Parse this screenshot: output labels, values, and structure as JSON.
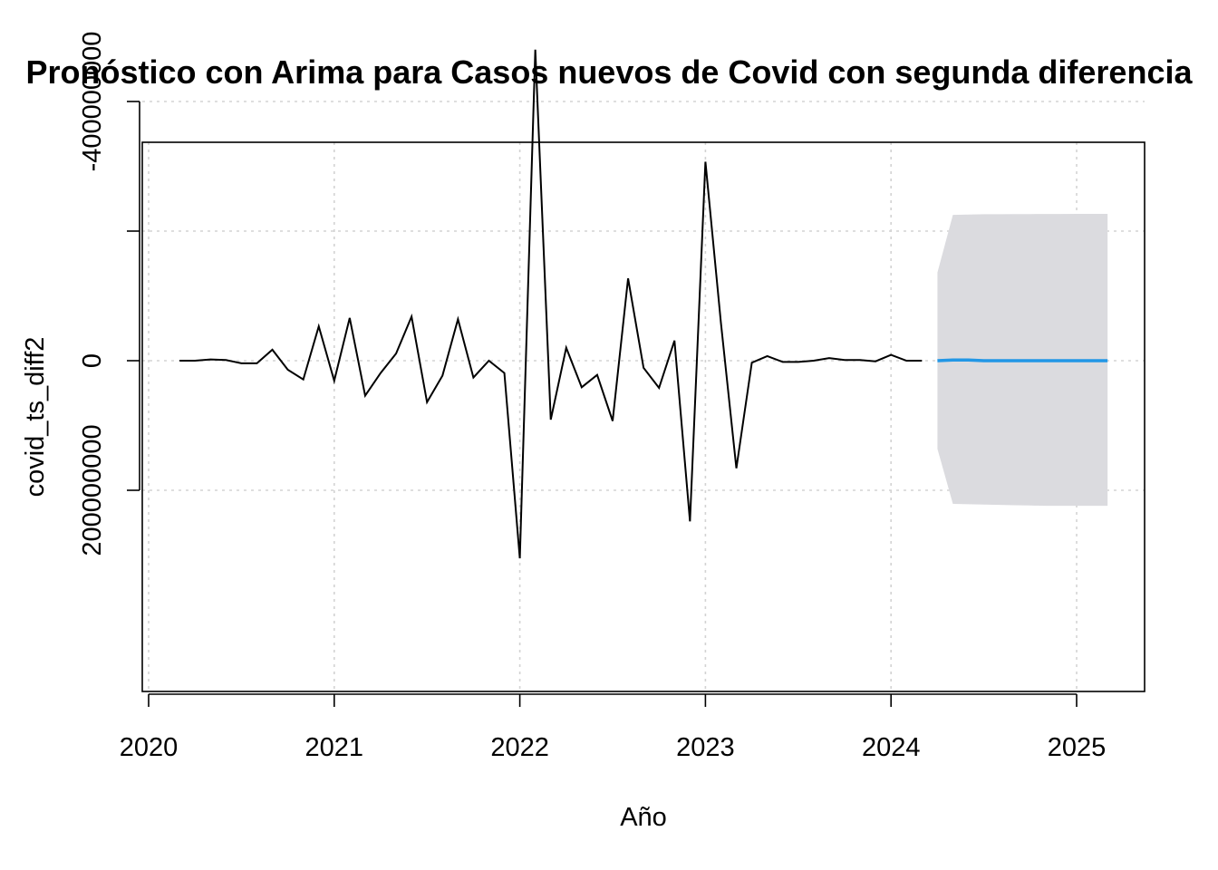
{
  "chart_data": {
    "type": "line",
    "title": "Pronóstico con Arima para Casos nuevos de Covid con segunda diferencia",
    "xlabel": "Año",
    "ylabel": "covid_ts_diff2",
    "xlim": [
      2020.0,
      2025.4
    ],
    "ylim": [
      -510000000,
      340000000
    ],
    "x_ticks": [
      2020,
      2021,
      2022,
      2023,
      2024,
      2025
    ],
    "x_tick_labels": [
      "2020",
      "2021",
      "2022",
      "2023",
      "2024",
      "2025"
    ],
    "y_ticks": [
      -400000000,
      -200000000,
      0,
      200000000
    ],
    "y_tick_labels": [
      "-400000000",
      "",
      "0",
      "200000000"
    ],
    "grid": true,
    "colors": {
      "observed": "#000000",
      "forecast": "#2297e6",
      "interval": "#dbdbdf",
      "grid": "#d3d3d3"
    },
    "series": [
      {
        "role": "observed",
        "x": [
          2020.1667,
          2020.25,
          2020.3333,
          2020.4167,
          2020.5,
          2020.5833,
          2020.6667,
          2020.75,
          2020.8333,
          2020.9167,
          2021.0,
          2021.0833,
          2021.1667,
          2021.25,
          2021.3333,
          2021.4167,
          2021.5,
          2021.5833,
          2021.6667,
          2021.75,
          2021.8333,
          2021.9167,
          2022.0,
          2022.0833,
          2022.1667,
          2022.25,
          2022.3333,
          2022.4167,
          2022.5,
          2022.5833,
          2022.6667,
          2022.75,
          2022.8333,
          2022.9167,
          2023.0,
          2023.0833,
          2023.1667,
          2023.25,
          2023.3333,
          2023.4167,
          2023.5,
          2023.5833,
          2023.6667,
          2023.75,
          2023.8333,
          2023.9167,
          2024.0,
          2024.0833,
          2024.1667
        ],
        "y": [
          0,
          0,
          -2000000,
          -1000000,
          4000000,
          4000000,
          -17000000,
          14000000,
          29000000,
          -53000000,
          31000000,
          -66000000,
          54000000,
          19000000,
          -11000000,
          -68000000,
          64000000,
          23000000,
          -64000000,
          26000000,
          0,
          19000000,
          305000000,
          -480000000,
          91000000,
          -20000000,
          41000000,
          22000000,
          93000000,
          -127000000,
          11000000,
          42000000,
          -31000000,
          248000000,
          -307000000,
          -59000000,
          166000000,
          3000000,
          -7000000,
          2000000,
          2000000,
          0,
          -4000000,
          -1000000,
          -1000000,
          1000000,
          -9000000,
          0,
          0
        ]
      },
      {
        "role": "forecast",
        "x": [
          2024.25,
          2024.3333,
          2024.4167,
          2024.5,
          2024.5833,
          2024.6667,
          2024.75,
          2024.8333,
          2024.9167,
          2025.0,
          2025.0833,
          2025.1667
        ],
        "y": [
          0,
          -1000000,
          -1000000,
          0,
          0,
          0,
          0,
          0,
          0,
          0,
          0,
          0
        ],
        "lower": [
          -136000000,
          -225000000,
          -225500000,
          -226000000,
          -226000000,
          -226200000,
          -226300000,
          -226400000,
          -226400000,
          -226500000,
          -226500000,
          -226600000
        ],
        "upper": [
          136000000,
          221000000,
          221500000,
          222000000,
          222500000,
          223000000,
          223500000,
          224000000,
          224000000,
          224000000,
          224000000,
          224000000
        ]
      }
    ]
  }
}
